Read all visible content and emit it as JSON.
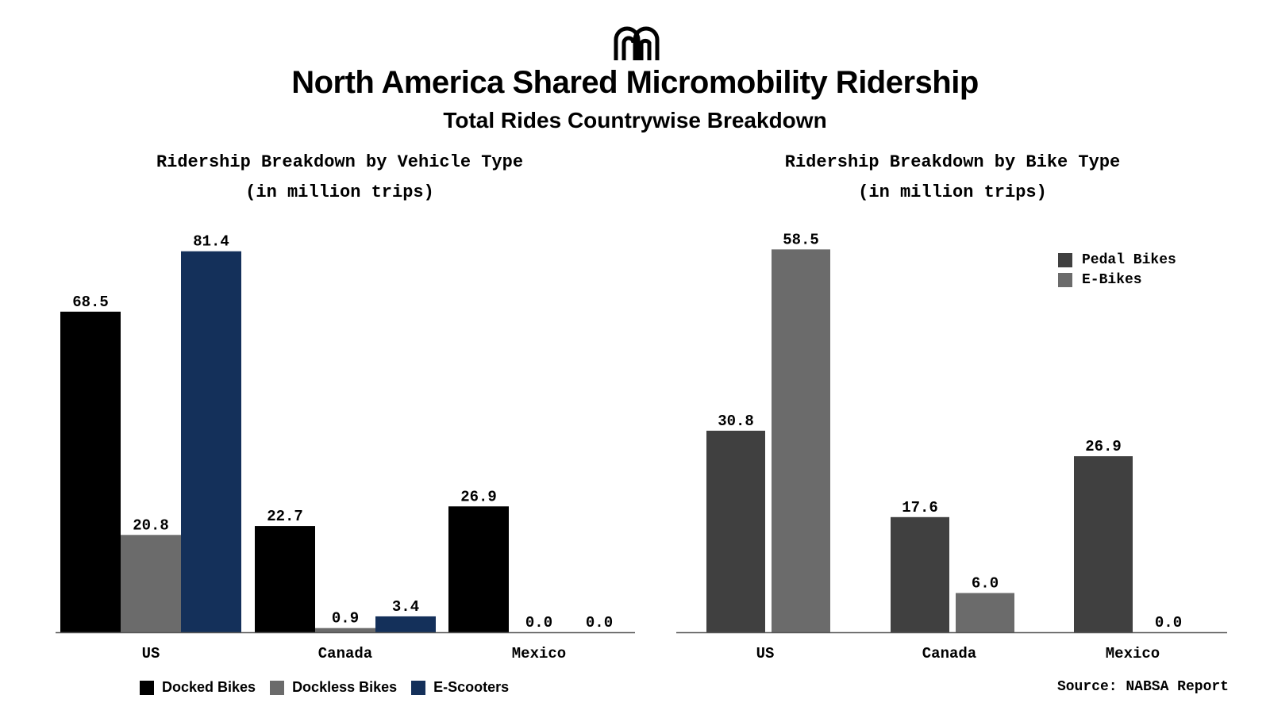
{
  "title": "North America Shared Micromobility Ridership",
  "subtitle": "Total Rides Countrywise Breakdown",
  "source": "Source: NABSA Report",
  "chart_data": [
    {
      "type": "bar",
      "title_line1": "Ridership Breakdown by Vehicle Type",
      "title_line2": "(in million trips)",
      "categories": [
        "US",
        "Canada",
        "Mexico"
      ],
      "series": [
        {
          "name": "Docked Bikes",
          "color": "#000000",
          "values": [
            68.5,
            22.7,
            26.9
          ]
        },
        {
          "name": "Dockless Bikes",
          "color": "#6b6b6b",
          "values": [
            20.8,
            0.9,
            0.0
          ]
        },
        {
          "name": "E-Scooters",
          "color": "#14305a",
          "values": [
            81.4,
            3.4,
            0.0
          ]
        }
      ],
      "legend_position": "bottom-left",
      "grid": false
    },
    {
      "type": "bar",
      "title_line1": "Ridership Breakdown by Bike Type",
      "title_line2": "(in million trips)",
      "categories": [
        "US",
        "Canada",
        "Mexico"
      ],
      "series": [
        {
          "name": "Pedal Bikes",
          "color": "#404040",
          "values": [
            30.8,
            17.6,
            26.9
          ]
        },
        {
          "name": "E-Bikes",
          "color": "#6b6b6b",
          "values": [
            58.5,
            6.0,
            0.0
          ]
        }
      ],
      "legend_position": "top-right",
      "grid": false
    }
  ]
}
